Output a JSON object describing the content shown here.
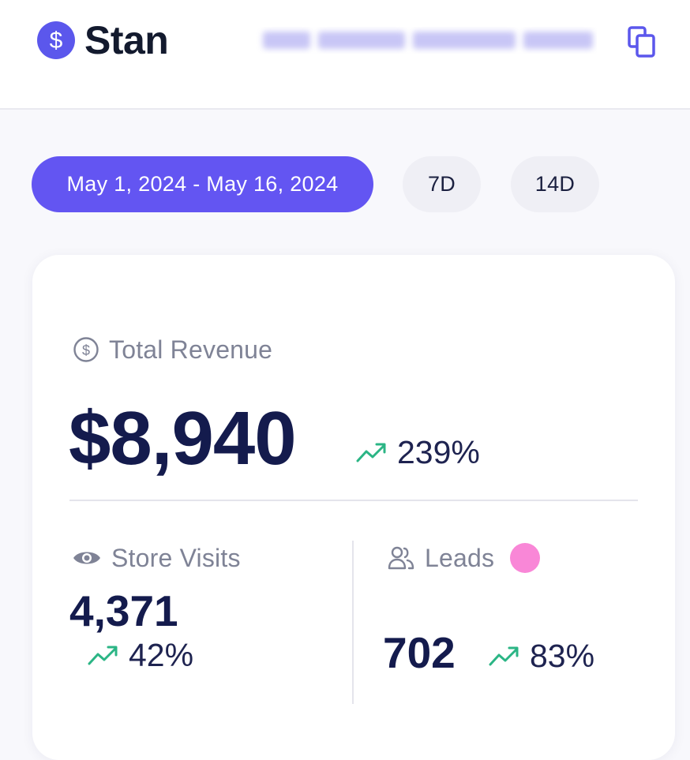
{
  "header": {
    "brand_name": "Stan",
    "logo_icon": "dollar-sign-icon",
    "copy_icon": "copy-icon",
    "accent_color": "#5B57EC"
  },
  "filters": {
    "date_range": "May 1, 2024 - May 16, 2024",
    "options": [
      "7D",
      "14D"
    ],
    "active_color": "#6355F2"
  },
  "stats": {
    "revenue": {
      "label": "Total Revenue",
      "icon": "dollar-circle-icon",
      "value": "$8,940",
      "change": "239%",
      "trend_icon": "trend-up-icon"
    },
    "visits": {
      "label": "Store Visits",
      "icon": "eye-icon",
      "value": "4,371",
      "change": "42%",
      "trend_icon": "trend-up-icon"
    },
    "leads": {
      "label": "Leads",
      "icon": "users-icon",
      "value": "702",
      "change": "83%",
      "trend_icon": "trend-up-icon",
      "dot_color": "#F987D7"
    }
  }
}
